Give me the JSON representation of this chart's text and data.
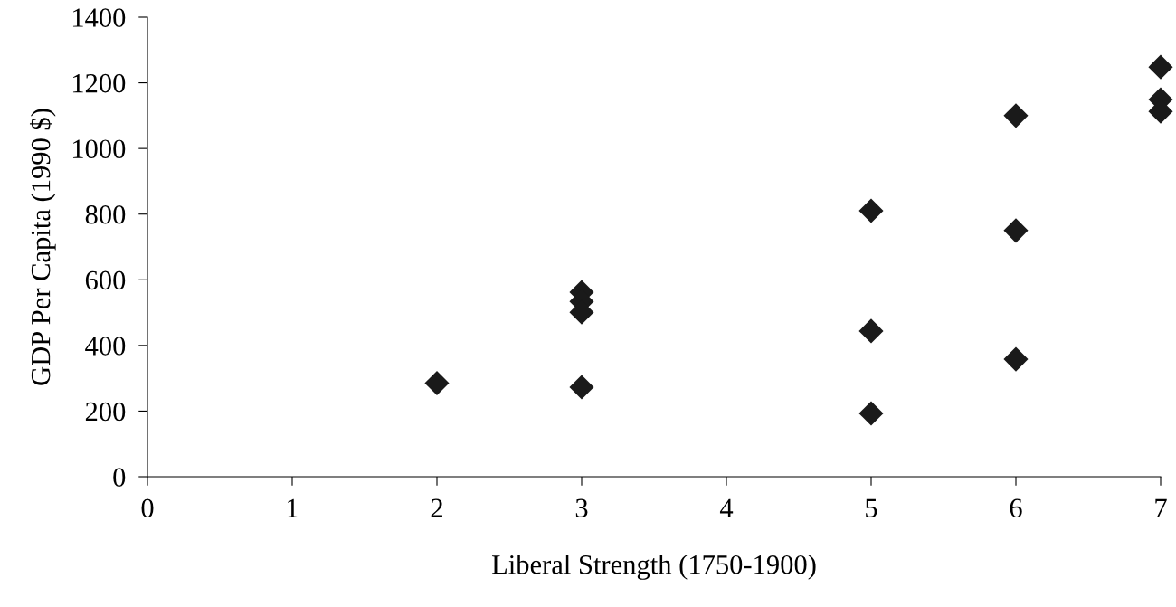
{
  "chart_data": {
    "type": "scatter",
    "xlabel": "Liberal Strength (1750-1900)",
    "ylabel": "GDP Per Capita (1990 $)",
    "x": [
      2,
      3,
      3,
      3,
      3,
      5,
      5,
      5,
      6,
      6,
      6,
      7,
      7,
      7
    ],
    "values": [
      285,
      562,
      534,
      501,
      273,
      810,
      444,
      193,
      1100,
      750,
      358,
      1248,
      1149,
      1113
    ],
    "color": "#1a1a1a",
    "marker": "diamond",
    "xlim": [
      0,
      7
    ],
    "xticks": [
      0,
      1,
      2,
      3,
      4,
      5,
      6,
      7
    ],
    "ylim": [
      0,
      1400
    ],
    "yticks": [
      0,
      200,
      400,
      600,
      800,
      1000,
      1200,
      1400
    ]
  }
}
